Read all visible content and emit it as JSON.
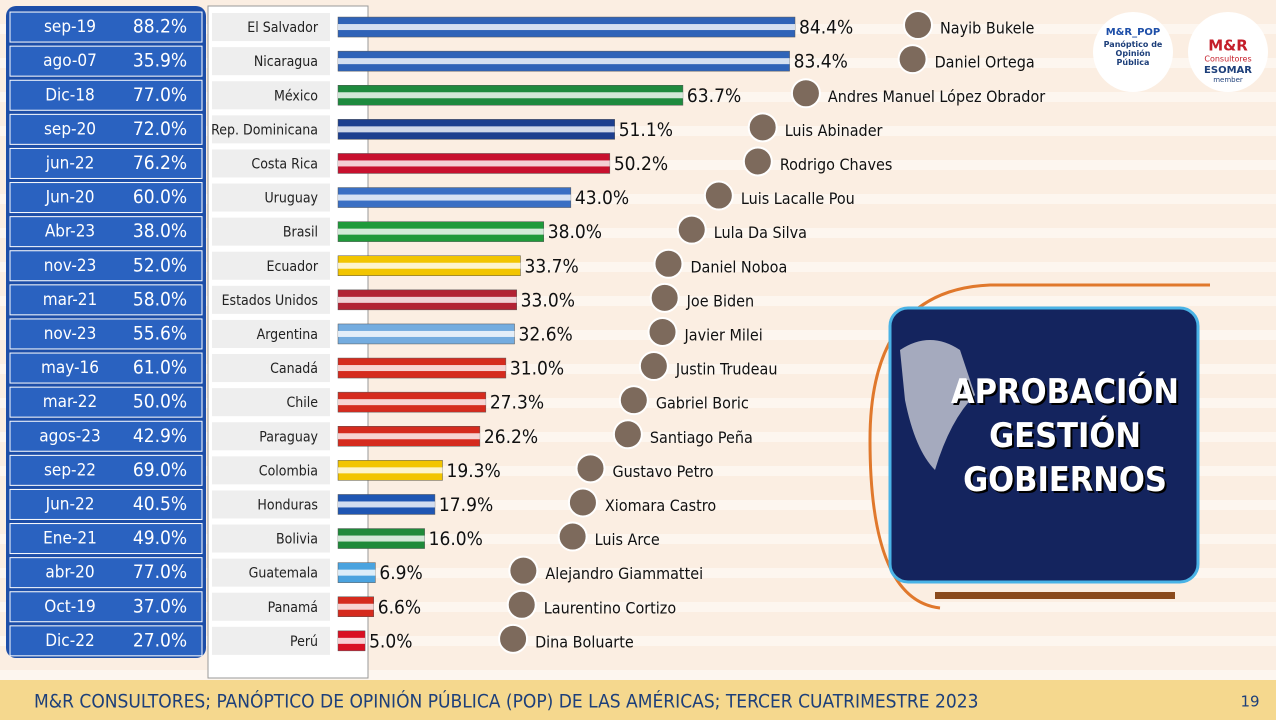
{
  "chart_data": {
    "type": "bar",
    "title": "APROBACIÓN GESTIÓN GOBIERNOS",
    "categories": [
      "El Salvador",
      "Nicaragua",
      "México",
      "Rep. Dominicana",
      "Costa Rica",
      "Uruguay",
      "Brasil",
      "Ecuador",
      "Estados Unidos",
      "Argentina",
      "Canadá",
      "Chile",
      "Paraguay",
      "Colombia",
      "Honduras",
      "Bolivia",
      "Guatemala",
      "Panamá",
      "Perú"
    ],
    "values": [
      84.4,
      83.4,
      63.7,
      51.1,
      50.2,
      43.0,
      38.0,
      33.7,
      33.0,
      32.6,
      31.0,
      27.3,
      26.2,
      19.3,
      17.9,
      16.0,
      6.9,
      6.6,
      5.0
    ],
    "value_labels": [
      "84.4%",
      "83.4%",
      "63.7%",
      "51.1%",
      "50.2%",
      "43.0%",
      "38.0%",
      "33.7%",
      "33.0%",
      "32.6%",
      "31.0%",
      "27.3%",
      "26.2%",
      "19.3%",
      "17.9%",
      "16.0%",
      "6.9%",
      "6.6%",
      "5.0%"
    ],
    "colors": [
      "#2f63b8",
      "#2f63b8",
      "#1e8a3e",
      "#1d3f8f",
      "#c8102e",
      "#3a6fc4",
      "#1f9a3a",
      "#f2c500",
      "#b22234",
      "#74acdf",
      "#d52b1e",
      "#d52b1e",
      "#d52b1e",
      "#f2c500",
      "#1f56b3",
      "#1f8a3a",
      "#4aa3df",
      "#d52b1e",
      "#d91023"
    ],
    "leaders": [
      "Nayib Bukele",
      "Daniel Ortega",
      "Andres Manuel López Obrador",
      "Luis Abinader",
      "Rodrigo Chaves",
      "Luis Lacalle Pou",
      "Lula Da Silva",
      "Daniel Noboa",
      "Joe Biden",
      "Javier Milei",
      "Justin Trudeau",
      "Gabriel Boric",
      "Santiago Peña",
      "Gustavo Petro",
      "Xiomara Castro",
      "Luis Arce",
      "Alejandro Giammattei",
      "Laurentino Cortizo",
      "Dina Boluarte"
    ],
    "start_dates": [
      "sep-19",
      "ago-07",
      "Dic-18",
      "sep-20",
      "jun-22",
      "Jun-20",
      "Abr-23",
      "nov-23",
      "mar-21",
      "nov-23",
      "may-16",
      "mar-22",
      "agos-23",
      "sep-22",
      "Jun-22",
      "Ene-21",
      "abr-20",
      "Oct-19",
      "Dic-22"
    ],
    "start_approval": [
      "88.2%",
      "35.9%",
      "77.0%",
      "72.0%",
      "76.2%",
      "60.0%",
      "38.0%",
      "52.0%",
      "58.0%",
      "55.6%",
      "61.0%",
      "50.0%",
      "42.9%",
      "69.0%",
      "40.5%",
      "49.0%",
      "77.0%",
      "37.0%",
      "27.0%"
    ]
  },
  "logos": {
    "pop_title": "M&R_POP",
    "pop_subtitle": "Panóptico de Opinión Pública",
    "mr_title": "M&R",
    "mr_subtitle": "Consultores",
    "esomar": "ESOMAR",
    "esomar_sub": "member"
  },
  "footer": {
    "text": "M&R CONSULTORES; PANÓPTICO DE OPINIÓN PÚBLICA (POP) DE LAS AMÉRICAS; TERCER CUATRIMESTRE 2023",
    "page": "19"
  }
}
